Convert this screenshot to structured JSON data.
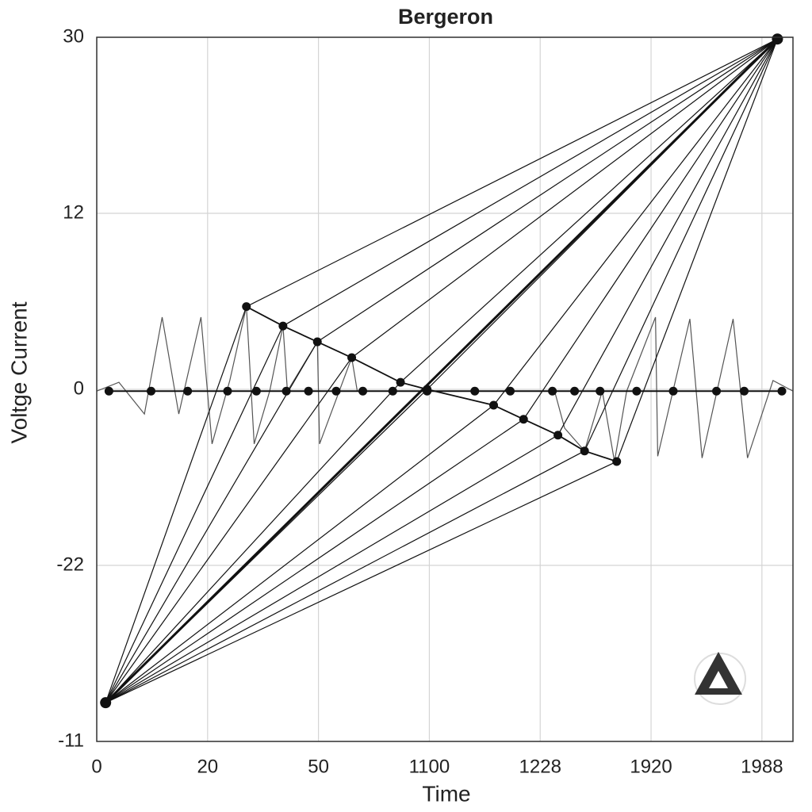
{
  "chart_data": {
    "type": "line",
    "title": "Bergeron",
    "x_label": "Time",
    "y_label": "Voltge Current",
    "xlim": [
      0,
      6.28
    ],
    "ylim": [
      0,
      4
    ],
    "xticks": [
      {
        "value": 0,
        "label": "0"
      },
      {
        "value": 1,
        "label": "20"
      },
      {
        "value": 2,
        "label": "50"
      },
      {
        "value": 3,
        "label": "1100"
      },
      {
        "value": 4,
        "label": "1228"
      },
      {
        "value": 5,
        "label": "1920"
      },
      {
        "value": 6,
        "label": "1988"
      }
    ],
    "yticks": [
      {
        "value": 4,
        "label": "30"
      },
      {
        "value": 3,
        "label": "12"
      },
      {
        "value": 2,
        "label": "0"
      },
      {
        "value": 1,
        "label": "-22"
      },
      {
        "value": 0,
        "label": "-11"
      }
    ],
    "grid": true,
    "color": "#111111",
    "hubs": {
      "x": [
        0.08,
        6.14
      ],
      "y": [
        0.22,
        3.99
      ]
    },
    "diagonal": {
      "x": [
        1.35,
        1.68,
        1.99,
        2.3,
        2.74,
        2.98,
        3.58,
        3.85,
        4.16,
        4.4,
        4.69
      ],
      "y": [
        2.47,
        2.36,
        2.27,
        2.18,
        2.04,
        2.0,
        1.91,
        1.83,
        1.74,
        1.65,
        1.59
      ]
    },
    "baseline": {
      "x": [
        0.11,
        0.49,
        0.82,
        1.18,
        1.44,
        1.71,
        1.91,
        2.16,
        2.4,
        2.67,
        2.98,
        3.41,
        3.73,
        4.11,
        4.31,
        4.54,
        4.87,
        5.2,
        5.59,
        5.84,
        6.18
      ],
      "y": [
        1.99,
        1.99,
        1.99,
        1.99,
        1.99,
        1.99,
        1.99,
        1.99,
        1.99,
        1.99,
        1.99,
        1.99,
        1.99,
        1.99,
        1.99,
        1.99,
        1.99,
        1.99,
        1.99,
        1.99,
        1.99
      ]
    },
    "wave": {
      "x": [
        0,
        0.2,
        0.43,
        0.59,
        0.74,
        0.94,
        1.04,
        1.2,
        1.35,
        1.42,
        1.56,
        1.68,
        1.72,
        1.99,
        2.01,
        2.3,
        2.35,
        3.0,
        4.13,
        4.22,
        4.4,
        4.56,
        4.67,
        4.78,
        5.04,
        5.06,
        5.35,
        5.46,
        5.74,
        5.87,
        6.1,
        6.28
      ],
      "y": [
        1.99,
        2.04,
        1.86,
        2.41,
        1.86,
        2.41,
        1.69,
        2.05,
        2.47,
        1.69,
        1.99,
        2.36,
        1.99,
        2.27,
        1.69,
        2.18,
        1.99,
        null,
        1.99,
        1.78,
        1.65,
        1.99,
        1.59,
        1.99,
        2.41,
        1.62,
        2.4,
        1.61,
        2.4,
        1.61,
        2.05,
        1.99
      ]
    }
  }
}
